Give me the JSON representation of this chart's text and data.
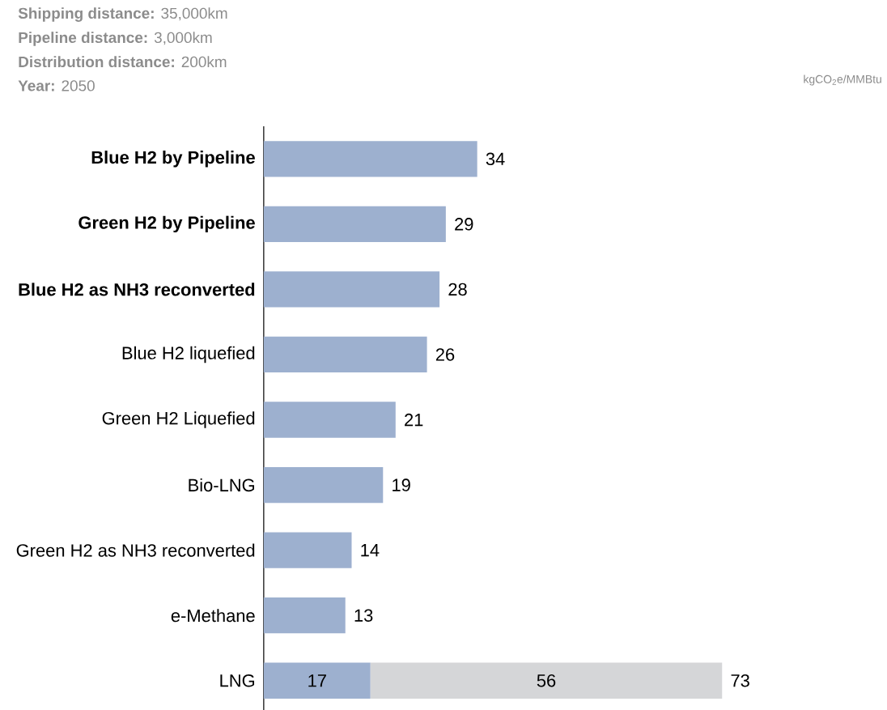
{
  "chart_data": {
    "type": "bar",
    "orientation": "horizontal",
    "stacked": true,
    "data_labels": true,
    "annotations": [
      "**Shipping distance:** 35,000km",
      "**Pipeline distance:** 3,000km",
      "**Distribution distance:** 200km",
      "**Year:** 2050",
      "kgCO$_{2}$e/MMBtu"
    ],
    "categories": [
      "**Blue H2 by Pipeline**",
      "**Green H2 by Pipeline**",
      "**Blue H2 as NH3 reconverted**",
      "Blue H2 liquefied",
      "Green H2 Liquefied",
      "Bio-LNG",
      "Green H2 as NH3 reconverted",
      "e-Methane",
      "LNG"
    ],
    "series": [
      {
        "color": "#9db0cf",
        "values": [
          34,
          29,
          28,
          26,
          21,
          19,
          14,
          13,
          17
        ]
      },
      {
        "color": "#d5d6d8",
        "values": [
          null,
          null,
          null,
          null,
          null,
          null,
          null,
          null,
          56
        ]
      }
    ],
    "totals": [
      null,
      null,
      null,
      null,
      null,
      null,
      null,
      null,
      "73"
    ]
  }
}
